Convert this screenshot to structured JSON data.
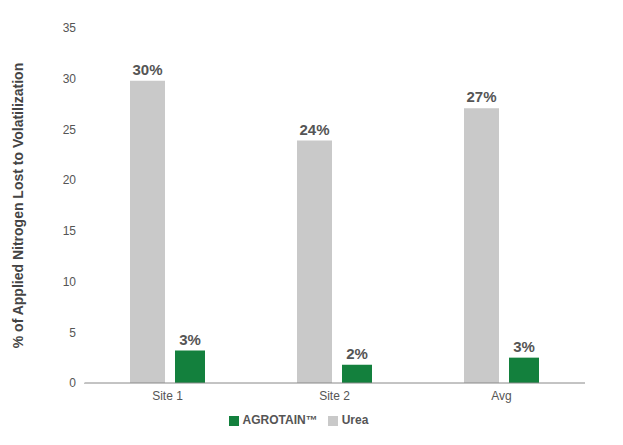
{
  "chart_data": {
    "type": "bar",
    "y_label": "% of Applied Nitrogen Lost to Volatilization",
    "categories": [
      "Site 1",
      "Site 2",
      "Avg"
    ],
    "series": [
      {
        "name": "Urea",
        "color": "#c9c9c9",
        "values": [
          29.8,
          23.9,
          27.1
        ],
        "value_labels": [
          "30%",
          "24%",
          "27%"
        ]
      },
      {
        "name": "AGROTAIN™",
        "color": "#13803d",
        "values": [
          3.2,
          1.8,
          2.5
        ],
        "value_labels": [
          "3%",
          "2%",
          "3%"
        ]
      }
    ],
    "ylim": [
      0,
      35
    ],
    "yticks": [
      0,
      5,
      10,
      15,
      20,
      25,
      30,
      35
    ],
    "grid": false,
    "legend": "bottom",
    "data_labels": true
  }
}
